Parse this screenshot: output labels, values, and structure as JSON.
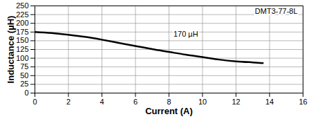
{
  "chart_data": {
    "type": "line",
    "x_label": "Current (A)",
    "y_label": "Inductance (µH)",
    "x": [
      0,
      1,
      2,
      3,
      4,
      5,
      6,
      7,
      8,
      9,
      10,
      11,
      12,
      13,
      13.6
    ],
    "series": [
      {
        "name": "DMT3-77-8L",
        "color": "#000000",
        "values": [
          175,
          172,
          167,
          161,
          153,
          144,
          135,
          126,
          118,
          110,
          103,
          96,
          91,
          88,
          86
        ]
      }
    ],
    "xlim": [
      0,
      16
    ],
    "xticks": [
      0,
      2,
      4,
      6,
      8,
      10,
      12,
      14,
      16
    ],
    "ylim": [
      0,
      250
    ],
    "yticks": [
      0,
      25,
      50,
      75,
      100,
      125,
      150,
      175,
      200,
      225,
      250
    ],
    "grid": true,
    "annotations": [
      {
        "text": "170 µH",
        "x": 9,
        "y": 168
      },
      {
        "text": "DMT3-77-8L",
        "x": 14.4,
        "y": 234
      }
    ]
  }
}
